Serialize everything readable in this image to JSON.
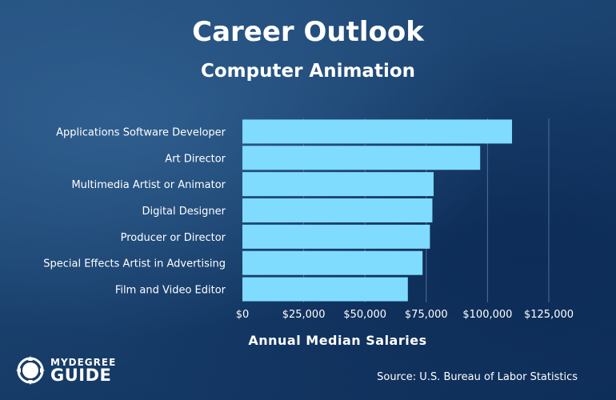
{
  "header": {
    "title": "Career Outlook",
    "subtitle": "Computer Animation"
  },
  "chart_data": {
    "type": "bar",
    "orientation": "horizontal",
    "title": "Career Outlook",
    "subtitle": "Computer Animation",
    "xlabel": "Annual Median Salaries",
    "ylabel": "",
    "categories": [
      "Applications Software Developer",
      "Art Director",
      "Multimedia Artist or Animator",
      "Digital Designer",
      "Producer or Director",
      "Special Effects Artist in Advertising",
      "Film and Video Editor"
    ],
    "values": [
      110000,
      97000,
      78000,
      77500,
      76500,
      73500,
      67500
    ],
    "ticks": [
      0,
      25000,
      50000,
      75000,
      100000,
      125000
    ],
    "tick_labels": [
      "$0",
      "$25,000",
      "$50,000",
      "$75,000",
      "$100,000",
      "$125,000"
    ],
    "xlim": [
      0,
      125000
    ],
    "grid": true,
    "bar_color": "#7fdcff"
  },
  "footer": {
    "source": "Source: U.S. Bureau of Labor Statistics",
    "logo_top": "MYDEGREE",
    "logo_bottom": "GUIDE"
  },
  "colors": {
    "text": "#ffffff",
    "bar": "#7fdcff",
    "grid": "#4f6f95"
  }
}
